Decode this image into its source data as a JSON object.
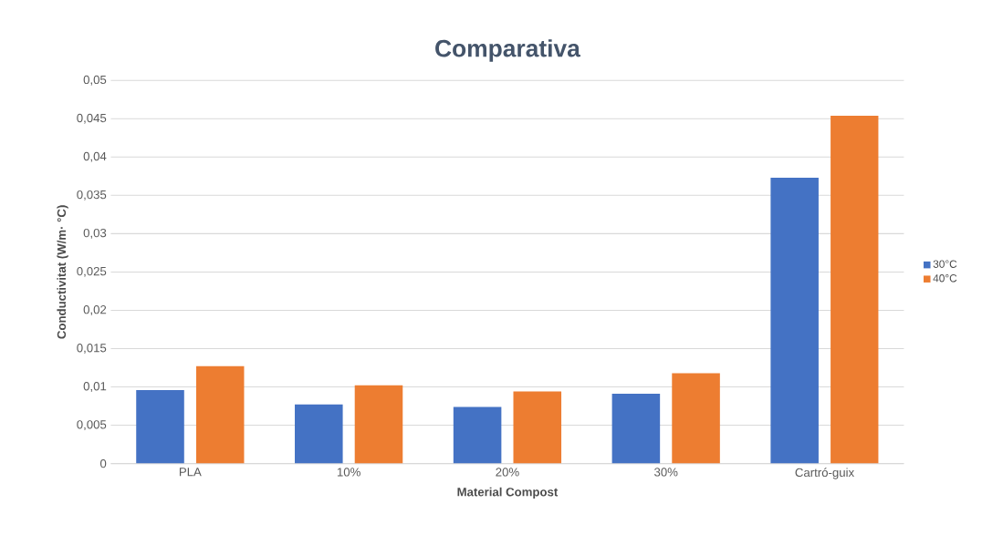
{
  "chart_data": {
    "type": "bar",
    "title": "Comparativa",
    "xlabel": "Material Compost",
    "ylabel": "Conductivitat (W/m· °C)",
    "categories": [
      "PLA",
      "10%",
      "20%",
      "30%",
      "Cartró-guix"
    ],
    "series": [
      {
        "name": "30°C",
        "color": "#4472c4",
        "values": [
          0.0096,
          0.0077,
          0.0074,
          0.0091,
          0.0373
        ]
      },
      {
        "name": "40°C",
        "color": "#ed7d31",
        "values": [
          0.0127,
          0.0102,
          0.0094,
          0.0118,
          0.0454
        ]
      }
    ],
    "ylim": [
      0,
      0.05
    ],
    "yticks": [
      {
        "value": 0,
        "label": "0"
      },
      {
        "value": 0.005,
        "label": "0,005"
      },
      {
        "value": 0.01,
        "label": "0,01"
      },
      {
        "value": 0.015,
        "label": "0,015"
      },
      {
        "value": 0.02,
        "label": "0,02"
      },
      {
        "value": 0.025,
        "label": "0,025"
      },
      {
        "value": 0.03,
        "label": "0,03"
      },
      {
        "value": 0.035,
        "label": "0,035"
      },
      {
        "value": 0.04,
        "label": "0,04"
      },
      {
        "value": 0.045,
        "label": "0,045"
      },
      {
        "value": 0.05,
        "label": "0,05"
      }
    ],
    "grid": "y",
    "legend": "right"
  }
}
